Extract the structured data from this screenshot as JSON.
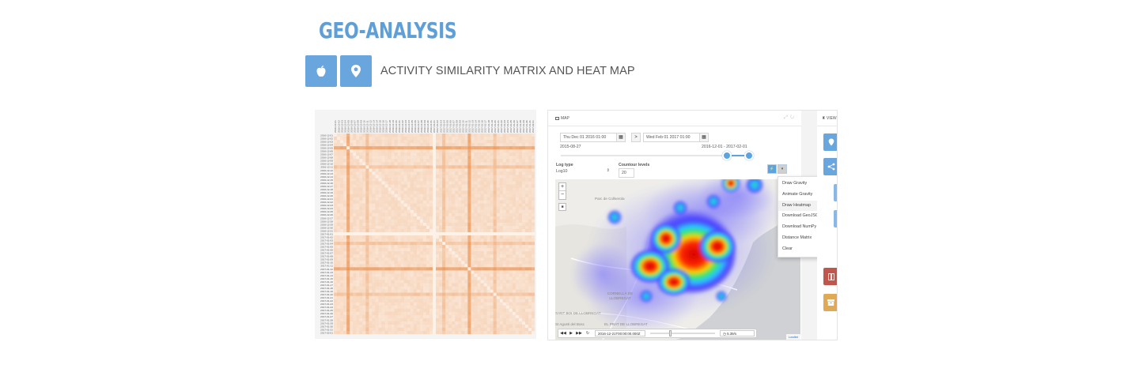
{
  "header": {
    "title": "GEO-ANALYSIS",
    "subtitle": "ACTIVITY SIMILARITY MATRIX AND HEAT MAP",
    "accent_color": "#6aa6de",
    "icon_buttons": [
      {
        "icon": "apple-icon"
      },
      {
        "icon": "map-marker-icon"
      }
    ]
  },
  "map_panel": {
    "title": "MAP",
    "start_date": "Thu Dec 01 2016 01:00",
    "end_date": "Wed Feb 01 2017 01:00",
    "next_label": ">",
    "range_min_label": "2015-08-27",
    "range_selected_label": "2016-12-01 - 2017-02-01",
    "log_type_label": "Log type",
    "log_type_value": "Log10",
    "contour_label": "Countour levels",
    "contour_value": "20",
    "map_labels": [
      "Parc de Collserola",
      "CORNELLÀ DE LLOBREGAT",
      "EL PRAT DE LLOBREGAT",
      "SANT BOI DE LLOBREGAT",
      "St Agusti del Bosc"
    ],
    "attribution": "Leaflet",
    "zoom_in": "+",
    "zoom_out": "−",
    "timeline": {
      "current_time": "2016-12-21T00:00:00.000Z",
      "speed": "5.39/s"
    }
  },
  "dropdown_menu": {
    "items": [
      "Draw Gravity",
      "Animate Gravity",
      "Draw Heatmap",
      "Download GeoJSON",
      "Download NumPy",
      "Distance Matrix",
      "Clear"
    ],
    "highlighted": "Draw Heatmap"
  },
  "right_panel": {
    "title": "VIEW",
    "buttons": [
      {
        "icon": "map-marker-icon",
        "color": "#6aa6de"
      },
      {
        "icon": "share-icon",
        "color": "#6aa6de"
      },
      {
        "icon": "columns-icon",
        "color": "#c0574d"
      },
      {
        "icon": "archive-icon",
        "color": "#e0a955"
      }
    ]
  },
  "matrix": {
    "row_labels": [
      "2016-12-01",
      "2016-12-02",
      "2016-12-03",
      "2016-12-04",
      "2016-12-05",
      "2016-12-06",
      "2016-12-07",
      "2016-12-08",
      "2016-12-09",
      "2016-12-10",
      "2016-12-11",
      "2016-12-12",
      "2016-12-13",
      "2016-12-14",
      "2016-12-15",
      "2016-12-16",
      "2016-12-17",
      "2016-12-18",
      "2016-12-19",
      "2016-12-20",
      "2016-12-21",
      "2016-12-22",
      "2016-12-23",
      "2016-12-24",
      "2016-12-25",
      "2016-12-26",
      "2016-12-27",
      "2016-12-28",
      "2016-12-29",
      "2016-12-30",
      "2016-12-31",
      "2017-01-01",
      "2017-01-02",
      "2017-01-03",
      "2017-01-04",
      "2017-01-05",
      "2017-01-06",
      "2017-01-07",
      "2017-01-08",
      "2017-01-09",
      "2017-01-10",
      "2017-01-11",
      "2017-01-12",
      "2017-01-13",
      "2017-01-14",
      "2017-01-15",
      "2017-01-16",
      "2017-01-17",
      "2017-01-18",
      "2017-01-19",
      "2017-01-20",
      "2017-01-21",
      "2017-01-22",
      "2017-01-23",
      "2017-01-24",
      "2017-01-25",
      "2017-01-26",
      "2017-01-27",
      "2017-01-28",
      "2017-01-29",
      "2017-01-30",
      "2017-01-31",
      "2017-02-01"
    ],
    "base_color": "#e8843a",
    "strong_rows": [
      4,
      42
    ],
    "medium_rows": [
      10,
      34,
      50
    ],
    "blank_rows": [
      31
    ]
  }
}
